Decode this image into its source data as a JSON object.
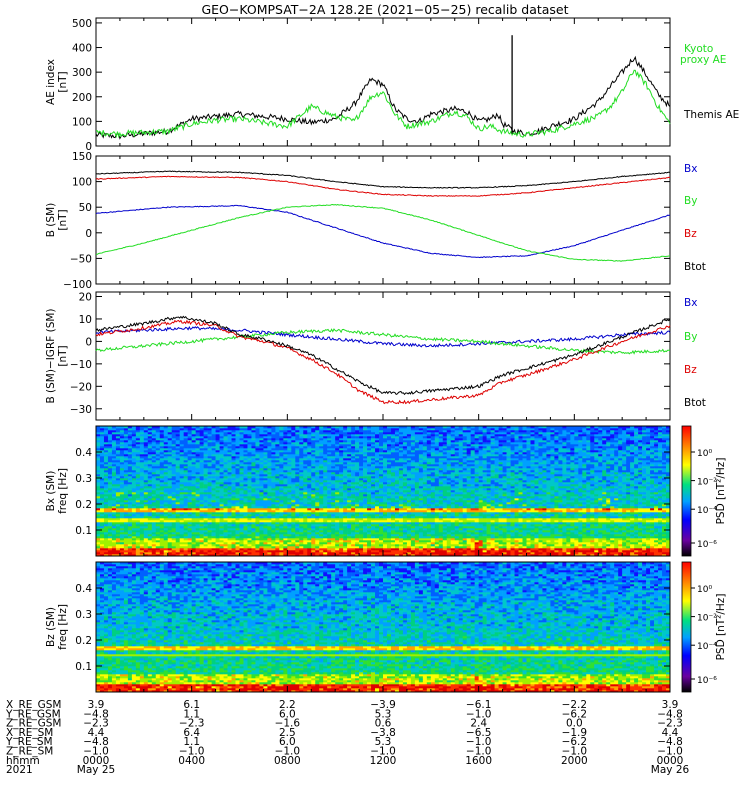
{
  "title": "GEO−KOMPSAT−2A 128.2E (2021−05−25) recalib dataset",
  "colors": {
    "black": "#000000",
    "green": "#22dd22",
    "blue": "#0000cc",
    "red": "#dd0000"
  },
  "chart_data": [
    {
      "type": "line",
      "panel": "ae",
      "ylabel": "AE index [nT]",
      "ylim": [
        0,
        520
      ],
      "yticks": [
        0,
        100,
        200,
        300,
        400,
        500
      ],
      "xlim": [
        0,
        24
      ],
      "series": [
        {
          "name": "Themis AE",
          "color": "black",
          "x": [
            0,
            1,
            2,
            3,
            4,
            5,
            6,
            7,
            8,
            9,
            10,
            10.8,
            11.5,
            12,
            12.5,
            13,
            13.5,
            14,
            15,
            15.5,
            16,
            16.5,
            16.8,
            17,
            17.5,
            18,
            18.5,
            19,
            20,
            21,
            21.5,
            22,
            22.5,
            23,
            23.5,
            24
          ],
          "y": [
            45,
            40,
            50,
            60,
            110,
            120,
            130,
            120,
            110,
            95,
            110,
            170,
            270,
            250,
            150,
            110,
            100,
            130,
            150,
            140,
            100,
            110,
            130,
            90,
            60,
            50,
            60,
            80,
            110,
            180,
            240,
            300,
            360,
            290,
            210,
            160
          ]
        },
        {
          "name": "Kyoto proxy AE",
          "color": "green",
          "x": [
            0,
            1,
            2,
            3,
            4,
            5,
            6,
            7,
            8,
            9,
            10,
            10.8,
            11.5,
            12,
            12.5,
            13,
            13.5,
            14,
            15,
            15.5,
            16,
            16.5,
            17,
            17.5,
            18,
            18.5,
            19,
            20,
            21,
            21.5,
            22,
            22.5,
            23,
            23.5,
            24
          ],
          "y": [
            55,
            50,
            55,
            60,
            90,
            105,
            110,
            95,
            80,
            160,
            120,
            100,
            200,
            220,
            130,
            80,
            90,
            100,
            140,
            120,
            70,
            80,
            60,
            50,
            45,
            55,
            60,
            90,
            120,
            160,
            220,
            310,
            250,
            160,
            90
          ]
        },
        {
          "name": "spike",
          "color": "black",
          "x": [
            17.4,
            17.4
          ],
          "y": [
            50,
            450
          ]
        }
      ]
    },
    {
      "type": "line",
      "panel": "b",
      "ylabel": "B (SM) [nT]",
      "ylim": [
        -100,
        150
      ],
      "yticks": [
        -100,
        -50,
        0,
        50,
        100,
        150
      ],
      "xlim": [
        0,
        24
      ],
      "series": [
        {
          "name": "Bx",
          "color": "blue",
          "x": [
            0,
            3,
            6,
            8,
            10,
            12,
            14,
            16,
            18,
            20,
            22,
            24
          ],
          "y": [
            38,
            50,
            53,
            40,
            10,
            -20,
            -40,
            -48,
            -45,
            -25,
            5,
            35
          ]
        },
        {
          "name": "By",
          "color": "green",
          "x": [
            0,
            2,
            4,
            6,
            8,
            10,
            12,
            14,
            16,
            18,
            20,
            22,
            24
          ],
          "y": [
            -42,
            -20,
            5,
            30,
            50,
            55,
            48,
            25,
            -5,
            -35,
            -52,
            -55,
            -45
          ]
        },
        {
          "name": "Bz",
          "color": "red",
          "x": [
            0,
            3,
            6,
            8,
            10,
            12,
            14,
            16,
            18,
            20,
            22,
            24
          ],
          "y": [
            105,
            110,
            108,
            100,
            85,
            75,
            72,
            72,
            78,
            88,
            98,
            108
          ]
        },
        {
          "name": "Btot",
          "color": "black",
          "x": [
            0,
            3,
            6,
            8,
            10,
            12,
            14,
            16,
            18,
            20,
            22,
            24
          ],
          "y": [
            115,
            120,
            118,
            112,
            100,
            90,
            88,
            88,
            92,
            100,
            110,
            118
          ]
        }
      ]
    },
    {
      "type": "line",
      "panel": "db",
      "ylabel": "B (SM)−IGRF (SM) [nT]",
      "ylim": [
        -35,
        22
      ],
      "yticks": [
        -30,
        -20,
        -10,
        0,
        10,
        20
      ],
      "xlim": [
        0,
        24
      ],
      "series": [
        {
          "name": "Bx",
          "color": "blue",
          "x": [
            0,
            2,
            4,
            6,
            8,
            10,
            12,
            14,
            16,
            18,
            20,
            22,
            24
          ],
          "y": [
            4,
            5,
            6,
            5,
            3,
            1,
            -1,
            -2,
            -1,
            0,
            1,
            3,
            4
          ]
        },
        {
          "name": "By",
          "color": "green",
          "x": [
            0,
            2,
            4,
            6,
            8,
            10,
            12,
            14,
            16,
            18,
            20,
            22,
            24
          ],
          "y": [
            -4,
            -2,
            0,
            2,
            4,
            5,
            3,
            1,
            0,
            -2,
            -4,
            -5,
            -4
          ]
        },
        {
          "name": "Bz",
          "color": "red",
          "x": [
            0,
            2,
            3.5,
            5,
            6,
            7,
            8,
            9,
            10,
            11,
            12,
            13,
            14,
            15,
            16,
            17,
            18,
            20,
            22,
            24
          ],
          "y": [
            3,
            6,
            9,
            7,
            2,
            0,
            -3,
            -8,
            -14,
            -22,
            -27,
            -27,
            -26,
            -25,
            -24,
            -18,
            -15,
            -8,
            0,
            7
          ]
        },
        {
          "name": "Btot",
          "color": "black",
          "x": [
            0,
            2,
            3.5,
            5,
            6,
            7,
            8,
            9,
            10,
            11,
            12,
            13,
            14,
            15,
            16,
            17,
            18,
            20,
            22,
            24
          ],
          "y": [
            5,
            8,
            11,
            8,
            3,
            1,
            -2,
            -6,
            -12,
            -18,
            -23,
            -23,
            -22,
            -21,
            -20,
            -15,
            -12,
            -6,
            2,
            10
          ]
        }
      ]
    },
    {
      "type": "heatmap",
      "panel": "spec_bx",
      "ylabel": "Bx (SM) freq [Hz]",
      "ylim": [
        0,
        0.5
      ],
      "yticks": [
        0.1,
        0.2,
        0.3,
        0.4
      ],
      "colorbar_label": "PSD [nT²/Hz]",
      "colorbar_ticks": [
        "10⁰",
        "10⁻²",
        "10⁻⁴",
        "10⁻⁶"
      ]
    },
    {
      "type": "heatmap",
      "panel": "spec_bz",
      "ylabel": "Bz (SM) freq [Hz]",
      "ylim": [
        0,
        0.5
      ],
      "yticks": [
        0.1,
        0.2,
        0.3,
        0.4
      ],
      "colorbar_label": "PSD [nT²/Hz]",
      "colorbar_ticks": [
        "10⁰",
        "10⁻²",
        "10⁻⁴",
        "10⁻⁶"
      ]
    }
  ],
  "panels": {
    "ae": {
      "ytick_labels": [
        "0",
        "100",
        "200",
        "300",
        "400",
        "500"
      ],
      "ylabel_top": "AE index",
      "ylabel_bottom": "[nT]",
      "legend": [
        "Kyoto",
        "proxy AE",
        "Themis AE"
      ]
    },
    "b": {
      "ytick_labels": [
        "−100",
        "−50",
        "0",
        "50",
        "100",
        "150"
      ],
      "ylabel_top": "B (SM)",
      "ylabel_bottom": "[nT]",
      "legend": [
        "Bx",
        "By",
        "Bz",
        "Btot"
      ]
    },
    "db": {
      "ytick_labels": [
        "−30",
        "−20",
        "−10",
        "0",
        "10",
        "20"
      ],
      "ylabel_top": "B (SM)−IGRF (SM)",
      "ylabel_bottom": "[nT]",
      "legend": [
        "Bx",
        "By",
        "Bz",
        "Btot"
      ]
    },
    "spec_bx": {
      "ytick_labels": [
        "0.1",
        "0.2",
        "0.3",
        "0.4"
      ],
      "ylabel_top": "Bx (SM)",
      "ylabel_bottom": "freq [Hz]",
      "cbar_label": "PSD [nT²/Hz]",
      "cbar_ticks": [
        "10⁰",
        "10⁻²",
        "10⁻⁴",
        "10⁻⁶"
      ]
    },
    "spec_bz": {
      "ytick_labels": [
        "0.1",
        "0.2",
        "0.3",
        "0.4"
      ],
      "ylabel_top": "Bz (SM)",
      "ylabel_bottom": "freq [Hz]",
      "cbar_label": "PSD [nT²/Hz]",
      "cbar_ticks": [
        "10⁰",
        "10⁻²",
        "10⁻⁴",
        "10⁻⁶"
      ]
    }
  },
  "footer": {
    "row_labels": [
      "X_RE_GSM",
      "Y_RE_GSM",
      "Z_RE_GSM",
      "X_RE_SM",
      "Y_RE_SM",
      "Z_RE_SM",
      "hhmm",
      "2021"
    ],
    "columns": [
      {
        "hours": 0,
        "values": [
          "3.9",
          "−4.8",
          "−2.3",
          "4.4",
          "−4.8",
          "−1.0",
          "0000",
          "May 25"
        ]
      },
      {
        "hours": 4,
        "values": [
          "6.1",
          "1.1",
          "−2.3",
          "6.4",
          "1.1",
          "−1.0",
          "0400",
          ""
        ]
      },
      {
        "hours": 8,
        "values": [
          "2.2",
          "6.0",
          "−1.6",
          "2.5",
          "6.0",
          "−1.0",
          "0800",
          ""
        ]
      },
      {
        "hours": 12,
        "values": [
          "−3.9",
          "5.3",
          "0.6",
          "−3.8",
          "5.3",
          "−1.0",
          "1200",
          ""
        ]
      },
      {
        "hours": 16,
        "values": [
          "−6.1",
          "−1.0",
          "2.4",
          "−6.5",
          "−1.0",
          "−1.0",
          "1600",
          ""
        ]
      },
      {
        "hours": 20,
        "values": [
          "−2.2",
          "−6.2",
          "0.0",
          "−1.9",
          "−6.2",
          "−1.0",
          "2000",
          ""
        ]
      },
      {
        "hours": 24,
        "values": [
          "3.9",
          "−4.8",
          "−2.3",
          "4.4",
          "−4.8",
          "−1.0",
          "0000",
          "May 26"
        ]
      }
    ]
  }
}
